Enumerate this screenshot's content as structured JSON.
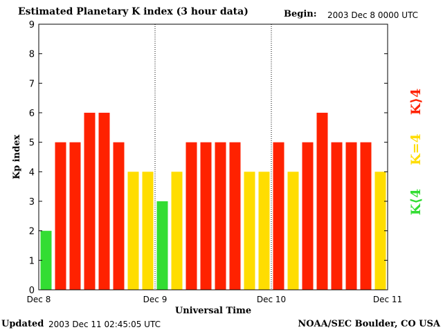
{
  "header": {
    "title": "Estimated Planetary K index (3 hour data)",
    "begin_label": "Begin:",
    "begin_value": "2003 Dec 8 0000 UTC"
  },
  "footer": {
    "updated_label": "Updated",
    "updated_value": "2003 Dec 11 02:45:05 UTC",
    "credit": "NOAA/SEC Boulder, CO USA"
  },
  "legend": {
    "low": "K⟨4",
    "mid": "K=4",
    "high": "K⟩4"
  },
  "colors": {
    "low": "#33dd33",
    "mid": "#ffdd00",
    "high": "#ff2200",
    "divider": "#000000"
  },
  "chart_data": {
    "type": "bar",
    "title": "Estimated Planetary K index (3 hour data)",
    "xlabel": "Universal Time",
    "ylabel": "Kp index",
    "ylim": [
      0,
      9
    ],
    "yticks": [
      "0",
      "1",
      "2",
      "3",
      "4",
      "5",
      "6",
      "7",
      "8",
      "9"
    ],
    "xticks": [
      "Dec 8",
      "Dec 9",
      "Dec 10",
      "Dec 11"
    ],
    "bars_per_day": 8,
    "values": [
      2,
      5,
      5,
      6,
      6,
      5,
      4,
      4,
      3,
      4,
      5,
      5,
      5,
      5,
      4,
      4,
      5,
      4,
      5,
      6,
      5,
      5,
      5,
      4
    ],
    "day_dividers": "dotted vertical lines at each day boundary",
    "color_rule": "green if K<4, yellow if K=4, red if K>4"
  }
}
